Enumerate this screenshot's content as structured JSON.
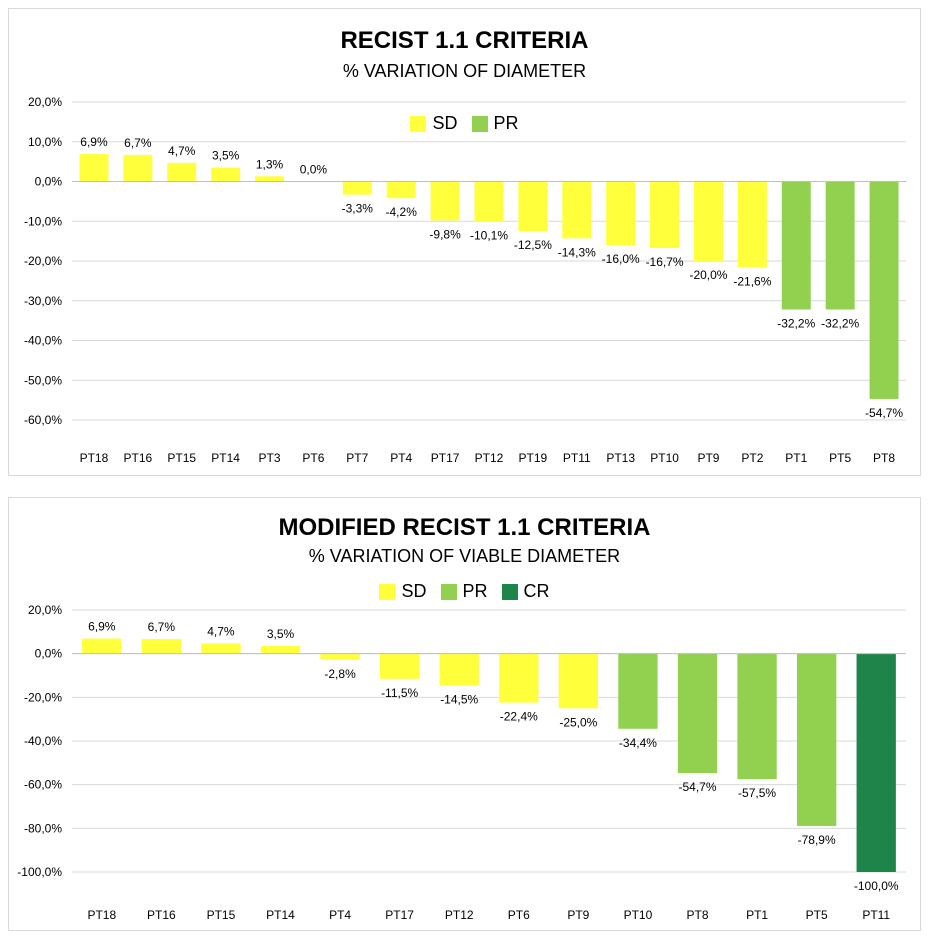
{
  "colors": {
    "SD": "#ffff3b",
    "PR": "#92d050",
    "CR": "#1e8449"
  },
  "chart_data": [
    {
      "type": "bar",
      "title": "RECIST 1.1 CRITERIA",
      "subtitle": "% VARIATION OF DIAMETER",
      "legend": [
        "SD",
        "PR"
      ],
      "legend_position": "top-center",
      "ylim": [
        -60,
        20
      ],
      "yticks": [
        20,
        10,
        0,
        -10,
        -20,
        -30,
        -40,
        -50,
        -60
      ],
      "ytick_labels": [
        "20,0%",
        "10,0%",
        "0,0%",
        "-10,0%",
        "-20,0%",
        "-30,0%",
        "-40,0%",
        "-50,0%",
        "-60,0%"
      ],
      "grid": true,
      "categories": [
        "PT18",
        "PT16",
        "PT15",
        "PT14",
        "PT3",
        "PT6",
        "PT7",
        "PT4",
        "PT17",
        "PT12",
        "PT19",
        "PT11",
        "PT13",
        "PT10",
        "PT9",
        "PT2",
        "PT1",
        "PT5",
        "PT8"
      ],
      "values": [
        6.9,
        6.7,
        4.7,
        3.5,
        1.3,
        0.0,
        -3.3,
        -4.2,
        -9.8,
        -10.1,
        -12.5,
        -14.3,
        -16.0,
        -16.7,
        -20.0,
        -21.6,
        -32.2,
        -32.2,
        -54.7
      ],
      "labels": [
        "6,9%",
        "6,7%",
        "4,7%",
        "3,5%",
        "1,3%",
        "0,0%",
        "-3,3%",
        "-4,2%",
        "-9,8%",
        "-10,1%",
        "-12,5%",
        "-14,3%",
        "-16,0%",
        "-16,7%",
        "-20,0%",
        "-21,6%",
        "-32,2%",
        "-32,2%",
        "-54,7%"
      ],
      "response": [
        "SD",
        "SD",
        "SD",
        "SD",
        "SD",
        "SD",
        "SD",
        "SD",
        "SD",
        "SD",
        "SD",
        "SD",
        "SD",
        "SD",
        "SD",
        "SD",
        "PR",
        "PR",
        "PR"
      ]
    },
    {
      "type": "bar",
      "title": "MODIFIED RECIST 1.1 CRITERIA",
      "subtitle": "% VARIATION OF VIABLE DIAMETER",
      "legend": [
        "SD",
        "PR",
        "CR"
      ],
      "legend_position": "top-center",
      "ylim": [
        -100,
        20
      ],
      "yticks": [
        20,
        0,
        -20,
        -40,
        -60,
        -80,
        -100
      ],
      "ytick_labels": [
        "20,0%",
        "0,0%",
        "-20,0%",
        "-40,0%",
        "-60,0%",
        "-80,0%",
        "-100,0%"
      ],
      "grid": true,
      "categories": [
        "PT18",
        "PT16",
        "PT15",
        "PT14",
        "PT4",
        "PT17",
        "PT12",
        "PT6",
        "PT9",
        "PT10",
        "PT8",
        "PT1",
        "PT5",
        "PT11"
      ],
      "values": [
        6.9,
        6.7,
        4.7,
        3.5,
        -2.8,
        -11.5,
        -14.5,
        -22.4,
        -25.0,
        -34.4,
        -54.7,
        -57.5,
        -78.9,
        -100.0
      ],
      "labels": [
        "6,9%",
        "6,7%",
        "4,7%",
        "3,5%",
        "-2,8%",
        "-11,5%",
        "-14,5%",
        "-22,4%",
        "-25,0%",
        "-34,4%",
        "-54,7%",
        "-57,5%",
        "-78,9%",
        "-100,0%"
      ],
      "response": [
        "SD",
        "SD",
        "SD",
        "SD",
        "SD",
        "SD",
        "SD",
        "SD",
        "SD",
        "PR",
        "PR",
        "PR",
        "PR",
        "CR"
      ]
    }
  ]
}
